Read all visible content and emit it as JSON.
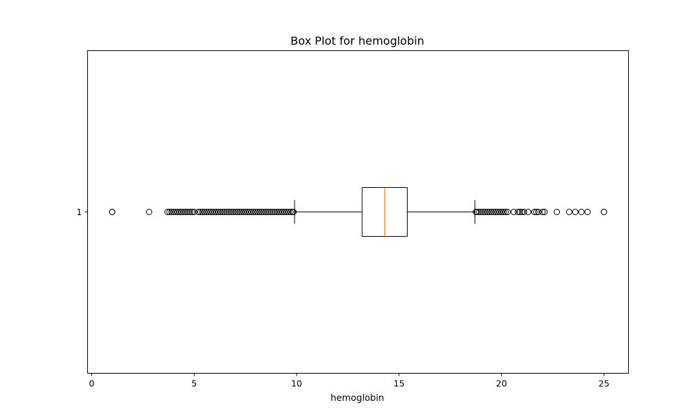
{
  "chart_data": {
    "type": "box",
    "title": "Box Plot for hemoglobin",
    "xlabel": "hemoglobin",
    "ylabel": "",
    "orientation": "horizontal",
    "xlim": [
      -0.2,
      26.2
    ],
    "xticks": [
      0,
      5,
      10,
      15,
      20,
      25
    ],
    "categories": [
      "1"
    ],
    "grid": false,
    "colors": {
      "box": "#000000",
      "median": "#ff7f0e",
      "flier": "#000000"
    },
    "boxes": [
      {
        "label": "1",
        "whisker_low": 9.9,
        "q1": 13.2,
        "median": 14.3,
        "q3": 15.4,
        "whisker_high": 18.7,
        "outliers": [
          1.0,
          1.0,
          2.8,
          3.7,
          3.8,
          3.9,
          4.0,
          4.1,
          4.2,
          4.3,
          4.4,
          4.5,
          4.6,
          4.7,
          4.8,
          4.9,
          5.0,
          5.2,
          5.3,
          5.4,
          5.5,
          5.6,
          5.7,
          5.8,
          5.9,
          6.0,
          6.1,
          6.2,
          6.3,
          6.4,
          6.5,
          6.6,
          6.7,
          6.8,
          6.9,
          7.0,
          7.1,
          7.2,
          7.3,
          7.4,
          7.5,
          7.6,
          7.7,
          7.8,
          7.9,
          8.0,
          8.1,
          8.2,
          8.3,
          8.4,
          8.5,
          8.6,
          8.7,
          8.8,
          8.9,
          9.0,
          9.1,
          9.2,
          9.3,
          9.4,
          9.5,
          9.6,
          9.7,
          9.8,
          9.85,
          18.75,
          18.8,
          18.9,
          19.0,
          19.1,
          19.2,
          19.3,
          19.4,
          19.5,
          19.6,
          19.7,
          19.8,
          19.9,
          20.0,
          20.1,
          20.2,
          20.3,
          20.6,
          20.8,
          20.9,
          21.0,
          21.1,
          21.3,
          21.6,
          21.7,
          21.8,
          22.0,
          22.1,
          22.7,
          23.3,
          23.6,
          23.9,
          24.2,
          25.0,
          25.0
        ]
      }
    ]
  }
}
